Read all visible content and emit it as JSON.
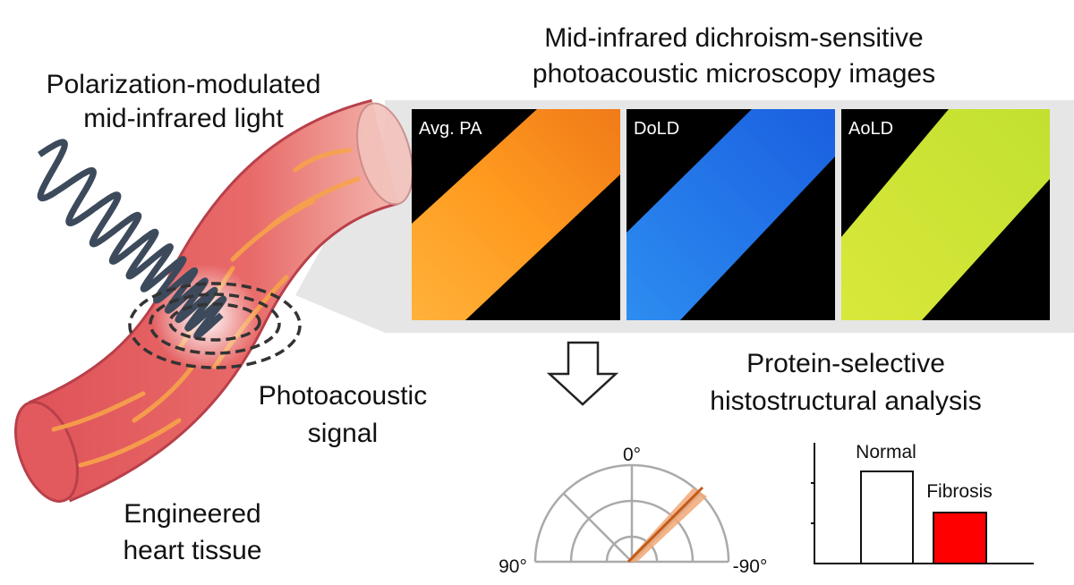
{
  "left_title": [
    "Polarization-modulated",
    "mid-infrared light"
  ],
  "images_title": [
    "Mid-infrared dichroism-sensitive",
    "photoacoustic microscopy images"
  ],
  "image_panels": [
    "Avg. PA",
    "DoLD",
    "AoLD"
  ],
  "signal_label": [
    "Photoacoustic",
    "signal"
  ],
  "tissue_label": [
    "Engineered",
    "heart tissue"
  ],
  "analysis_title": [
    "Protein-selective",
    "histostructural analysis"
  ],
  "polar_labels": {
    "top": "0°",
    "left": "90°",
    "right": "-90°"
  },
  "bar_labels": [
    "Normal",
    "Fibrosis"
  ]
}
